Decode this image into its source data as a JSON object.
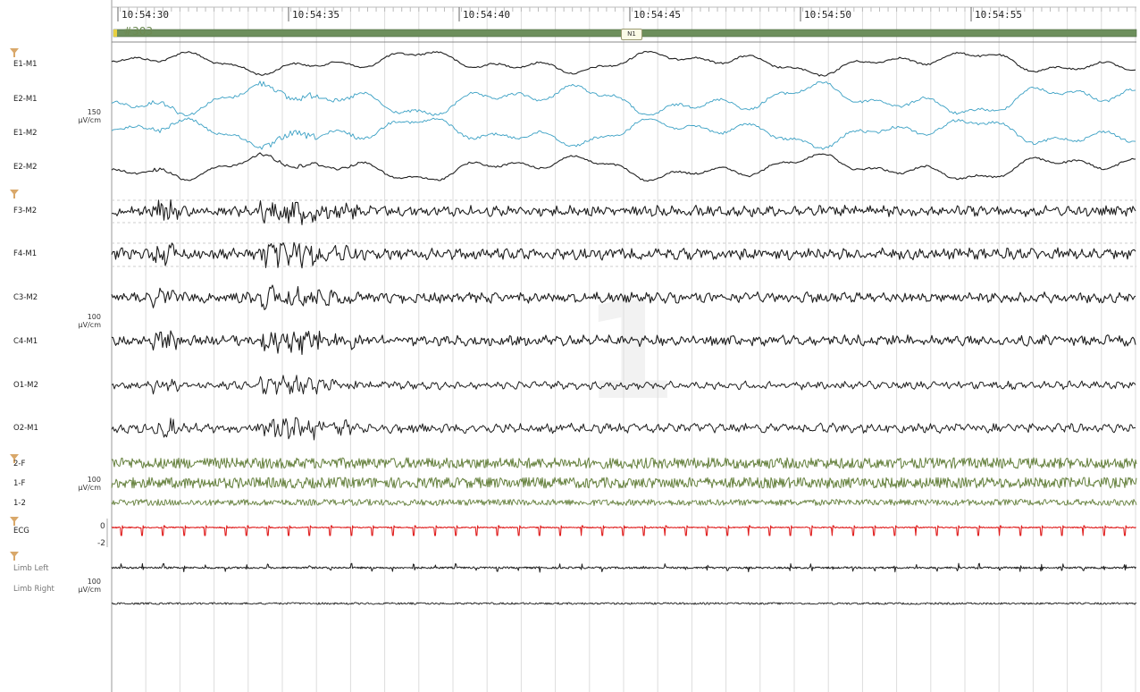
{
  "timeline": {
    "labels": [
      "10:54:30",
      "10:54:35",
      "10:54:40",
      "10:54:45",
      "10:54:50",
      "10:54:55"
    ]
  },
  "epoch": {
    "number": "#303",
    "stage": "N1",
    "bar_color": "#6d8f5c"
  },
  "colors": {
    "eog_black": "#222222",
    "eog_blue": "#3aa0c4",
    "eeg": "#1e1e1e",
    "emg": "#66813e",
    "ecg": "#e02020",
    "limb": "#1e1e1e",
    "filter_icon": "#d9a86a",
    "grid": "#dddddd"
  },
  "channels": {
    "e1_m1": "E1-M1",
    "e2_m1": "E2-M1",
    "e1_m2": "E1-M2",
    "e2_m2": "E2-M2",
    "f3_m2": "F3-M2",
    "f4_m1": "F4-M1",
    "c3_m2": "C3-M2",
    "c4_m1": "C4-M1",
    "o1_m2": "O1-M2",
    "o2_m1": "O2-M1",
    "chin_2f": "2-F",
    "chin_1f": "1-F",
    "chin_12": "1-2",
    "ecg": "ECG",
    "limb_left": "Limb Left",
    "limb_right": "Limb Right"
  },
  "scales": {
    "eog": {
      "value": "150",
      "unit": "µV/cm"
    },
    "eeg": {
      "value": "100",
      "unit": "µV/cm"
    },
    "emg": {
      "value": "100",
      "unit": "µV/cm"
    },
    "ecg_zero": "0",
    "ecg_minus": "-2",
    "limb": {
      "value": "100",
      "unit": "µV/cm"
    }
  },
  "watermark": "1",
  "icons": [
    "filter-icon"
  ]
}
